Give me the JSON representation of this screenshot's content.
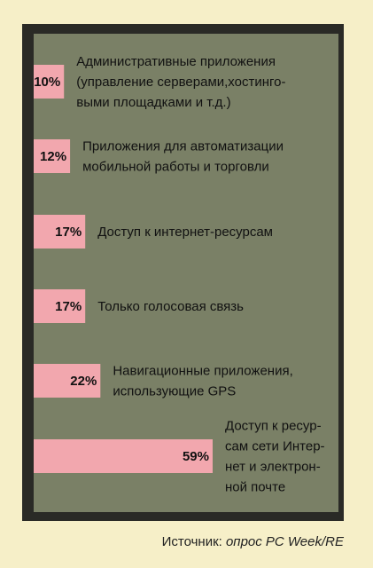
{
  "chart_data": {
    "type": "bar",
    "orientation": "horizontal",
    "colors": {
      "panel": "#7a8066",
      "panel_shadow": "#2a2a26",
      "bar": "#f2a7ae",
      "background": "#f6efc8"
    },
    "categories": [
      [
        "Административные приложения",
        "(управление серверами,хостинго-",
        "выми площадками и т.д.)"
      ],
      [
        "Приложения для автоматизации",
        "мобильной работы и торговли"
      ],
      [
        "Доступ к интернет-ресурсам"
      ],
      [
        "Только голосовая связь"
      ],
      [
        "Навигационные приложения,",
        "использующие GPS"
      ],
      [
        "Доступ к ресур-",
        "сам сети Интер-",
        "нет и электрон-",
        "ной почте"
      ]
    ],
    "values": [
      10,
      12,
      17,
      17,
      22,
      59
    ],
    "value_labels": [
      "10%",
      "12%",
      "17%",
      "17%",
      "22%",
      "59%"
    ],
    "unit": "%"
  },
  "source": {
    "prefix": "Источник: ",
    "text": "опрос PC Week/RE"
  }
}
